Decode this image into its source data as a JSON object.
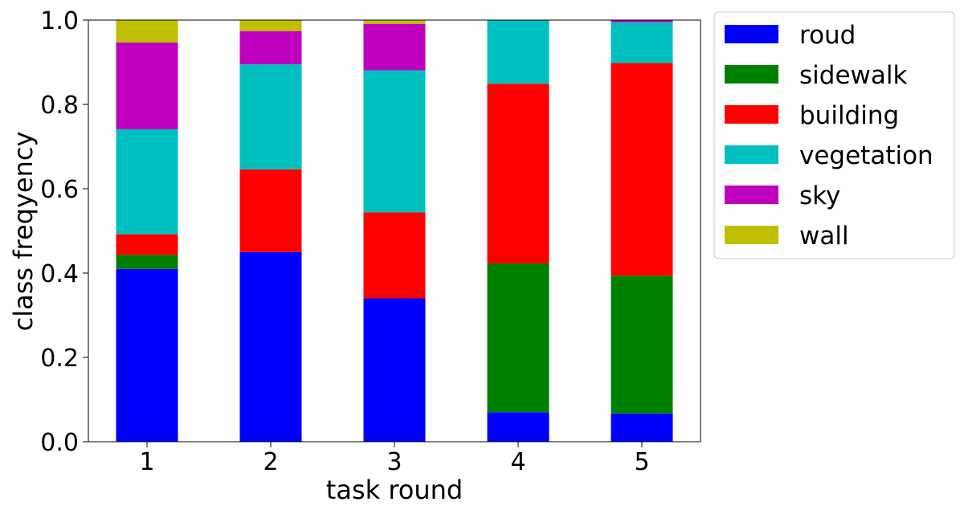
{
  "chart_data": {
    "type": "bar",
    "stacked": true,
    "categories": [
      "1",
      "2",
      "3",
      "4",
      "5"
    ],
    "series": [
      {
        "name": "roud",
        "color": "#0000ff",
        "values": [
          0.41,
          0.45,
          0.34,
          0.07,
          0.067
        ]
      },
      {
        "name": "sidewalk",
        "color": "#008000",
        "values": [
          0.033,
          0.0,
          0.0,
          0.353,
          0.327
        ]
      },
      {
        "name": "building",
        "color": "#ff0000",
        "values": [
          0.049,
          0.196,
          0.204,
          0.426,
          0.504
        ]
      },
      {
        "name": "vegetation",
        "color": "#00bfbf",
        "values": [
          0.249,
          0.249,
          0.337,
          0.151,
          0.097
        ]
      },
      {
        "name": "sky",
        "color": "#bf00bf",
        "values": [
          0.206,
          0.079,
          0.11,
          0.0,
          0.005
        ]
      },
      {
        "name": "wall",
        "color": "#bfbf00",
        "values": [
          0.053,
          0.026,
          0.009,
          0.0,
          0.0
        ]
      }
    ],
    "xlabel": "task round",
    "ylabel": "class freqyency",
    "ylim": [
      0,
      1.0
    ],
    "yticks": [
      "0.0",
      "0.2",
      "0.4",
      "0.6",
      "0.8",
      "1.0"
    ],
    "grid": false,
    "legend": "outside-right-top"
  }
}
